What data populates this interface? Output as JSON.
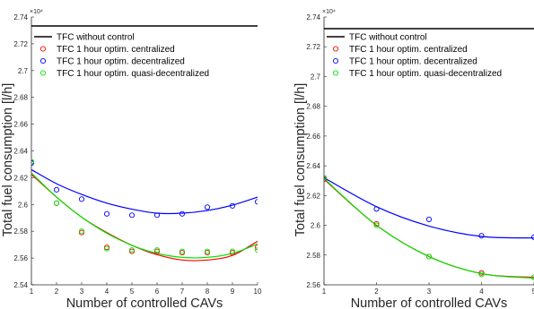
{
  "chart_data": [
    {
      "type": "scatter",
      "title": "",
      "xlabel": "Number of controlled CAVs",
      "ylabel": "Total fuel consumption [l/h]",
      "y_exponent": "×10⁴",
      "xlim": [
        1,
        10
      ],
      "ylim": [
        2.54,
        2.74
      ],
      "x_ticks": [
        "1",
        "2",
        "3",
        "4",
        "5",
        "6",
        "7",
        "8",
        "9",
        "10"
      ],
      "y_ticks": [
        "2.54",
        "2.56",
        "2.58",
        "2.6",
        "2.62",
        "2.64",
        "2.66",
        "2.68",
        "2.7",
        "2.72",
        "2.74"
      ],
      "grid": false,
      "legend_position": "top-left",
      "reference_line": {
        "name": "TFC without control",
        "y": 2.733,
        "color": "#000000"
      },
      "series": [
        {
          "name": "TFC 1 hour optim. centralized",
          "color": "#ff0000",
          "x": [
            1,
            2,
            3,
            4,
            5,
            6,
            7,
            8,
            9,
            10
          ],
          "values": [
            2.631,
            2.601,
            2.579,
            2.568,
            2.565,
            2.565,
            2.564,
            2.564,
            2.564,
            2.568
          ],
          "fit": [
            2.6225,
            2.6055,
            2.5905,
            2.579,
            2.5695,
            2.5625,
            2.5585,
            2.5585,
            2.562,
            2.5725
          ]
        },
        {
          "name": "TFC 1 hour optim. decentralized",
          "color": "#0000ff",
          "x": [
            1,
            2,
            3,
            4,
            5,
            6,
            7,
            8,
            9,
            10
          ],
          "values": [
            2.631,
            2.611,
            2.604,
            2.593,
            2.592,
            2.592,
            2.593,
            2.598,
            2.599,
            2.602
          ],
          "fit": [
            2.626,
            2.6155,
            2.6075,
            2.601,
            2.5965,
            2.5935,
            2.5935,
            2.5955,
            2.5995,
            2.6055
          ]
        },
        {
          "name": "TFC 1 hour optim. quasi-decentralized",
          "color": "#00e600",
          "x": [
            1,
            2,
            3,
            4,
            5,
            6,
            7,
            8,
            9,
            10
          ],
          "values": [
            2.632,
            2.601,
            2.58,
            2.567,
            2.566,
            2.566,
            2.565,
            2.565,
            2.565,
            2.566
          ],
          "fit": [
            2.6235,
            2.6055,
            2.5905,
            2.5785,
            2.5695,
            2.5635,
            2.5605,
            2.5605,
            2.5635,
            2.5705
          ]
        }
      ]
    },
    {
      "type": "scatter",
      "title": "",
      "xlabel": "Number of controlled CAVs",
      "ylabel": "Total fuel consumption [l/h]",
      "y_exponent": "×10⁴",
      "xlim": [
        1,
        5
      ],
      "ylim": [
        2.56,
        2.74
      ],
      "x_ticks": [
        "1",
        "2",
        "3",
        "4",
        "5"
      ],
      "y_ticks": [
        "2.56",
        "2.58",
        "2.6",
        "2.62",
        "2.64",
        "2.66",
        "2.68",
        "2.7",
        "2.72",
        "2.74"
      ],
      "grid": false,
      "legend_position": "top-left",
      "reference_line": {
        "name": "TFC without control",
        "y": 2.733,
        "color": "#000000"
      },
      "series": [
        {
          "name": "TFC 1 hour optim. centralized",
          "color": "#ff0000",
          "x": [
            1,
            2,
            3,
            4,
            5
          ],
          "values": [
            2.631,
            2.601,
            2.579,
            2.568,
            2.565
          ],
          "fit": [
            2.631,
            2.6,
            2.579,
            2.5675,
            2.565
          ]
        },
        {
          "name": "TFC 1 hour optim. decentralized",
          "color": "#0000ff",
          "x": [
            1,
            2,
            3,
            4,
            5
          ],
          "values": [
            2.632,
            2.611,
            2.604,
            2.593,
            2.592
          ],
          "fit": [
            2.632,
            2.6125,
            2.5995,
            2.5925,
            2.5915
          ]
        },
        {
          "name": "TFC 1 hour optim. quasi-decentralized",
          "color": "#00e600",
          "x": [
            1,
            2,
            3,
            4,
            5
          ],
          "values": [
            2.632,
            2.6,
            2.579,
            2.567,
            2.565
          ],
          "fit": [
            2.6315,
            2.6,
            2.579,
            2.5675,
            2.5645
          ]
        }
      ]
    }
  ]
}
